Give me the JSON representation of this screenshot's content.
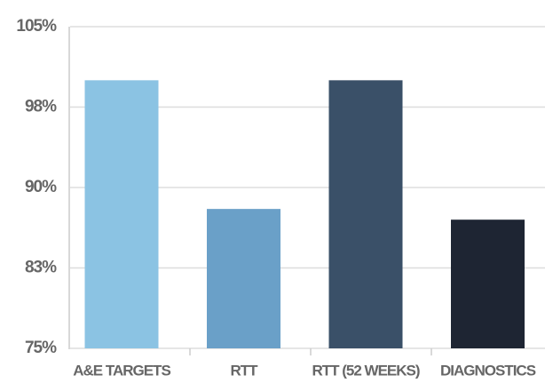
{
  "chart_data": {
    "type": "bar",
    "categories": [
      "A&E TARGETS",
      "RTT",
      "RTT (52 WEEKS)",
      "DIAGNOSTICS"
    ],
    "values": [
      100,
      88,
      100,
      87
    ],
    "colors": [
      "#8bc3e3",
      "#6aa0c8",
      "#3a5068",
      "#1e2533"
    ],
    "ylim": [
      75,
      105
    ],
    "yticks": [
      {
        "value": 75,
        "label": "75%"
      },
      {
        "value": 82.5,
        "label": "83%"
      },
      {
        "value": 90,
        "label": "90%"
      },
      {
        "value": 97.5,
        "label": "98%"
      },
      {
        "value": 105,
        "label": "105%"
      }
    ],
    "grid": true
  }
}
